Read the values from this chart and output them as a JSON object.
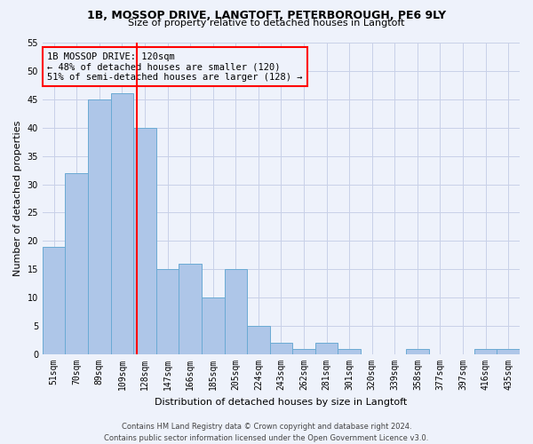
{
  "title1": "1B, MOSSOP DRIVE, LANGTOFT, PETERBOROUGH, PE6 9LY",
  "title2": "Size of property relative to detached houses in Langtoft",
  "xlabel": "Distribution of detached houses by size in Langtoft",
  "ylabel": "Number of detached properties",
  "bar_labels": [
    "51sqm",
    "70sqm",
    "89sqm",
    "109sqm",
    "128sqm",
    "147sqm",
    "166sqm",
    "185sqm",
    "205sqm",
    "224sqm",
    "243sqm",
    "262sqm",
    "281sqm",
    "301sqm",
    "320sqm",
    "339sqm",
    "358sqm",
    "377sqm",
    "397sqm",
    "416sqm",
    "435sqm"
  ],
  "bar_values": [
    19,
    32,
    45,
    46,
    40,
    15,
    16,
    10,
    15,
    5,
    2,
    1,
    2,
    1,
    0,
    0,
    1,
    0,
    0,
    1,
    1
  ],
  "bar_color": "#aec6e8",
  "bar_edge_color": "#6aaad4",
  "vline_color": "red",
  "vline_pos": 3.65,
  "annotation_box_color": "red",
  "ann_line1": "1B MOSSOP DRIVE: 120sqm",
  "ann_line2": "← 48% of detached houses are smaller (120)",
  "ann_line3": "51% of semi-detached houses are larger (128) →",
  "ylim": [
    0,
    55
  ],
  "yticks": [
    0,
    5,
    10,
    15,
    20,
    25,
    30,
    35,
    40,
    45,
    50,
    55
  ],
  "footer_line1": "Contains HM Land Registry data © Crown copyright and database right 2024.",
  "footer_line2": "Contains public sector information licensed under the Open Government Licence v3.0.",
  "background_color": "#eef2fb",
  "grid_color": "#c8d0e8",
  "title_fontsize": 9,
  "subtitle_fontsize": 8,
  "xlabel_fontsize": 8,
  "ylabel_fontsize": 8,
  "tick_fontsize": 7,
  "footer_fontsize": 6,
  "ann_fontsize": 7.5
}
